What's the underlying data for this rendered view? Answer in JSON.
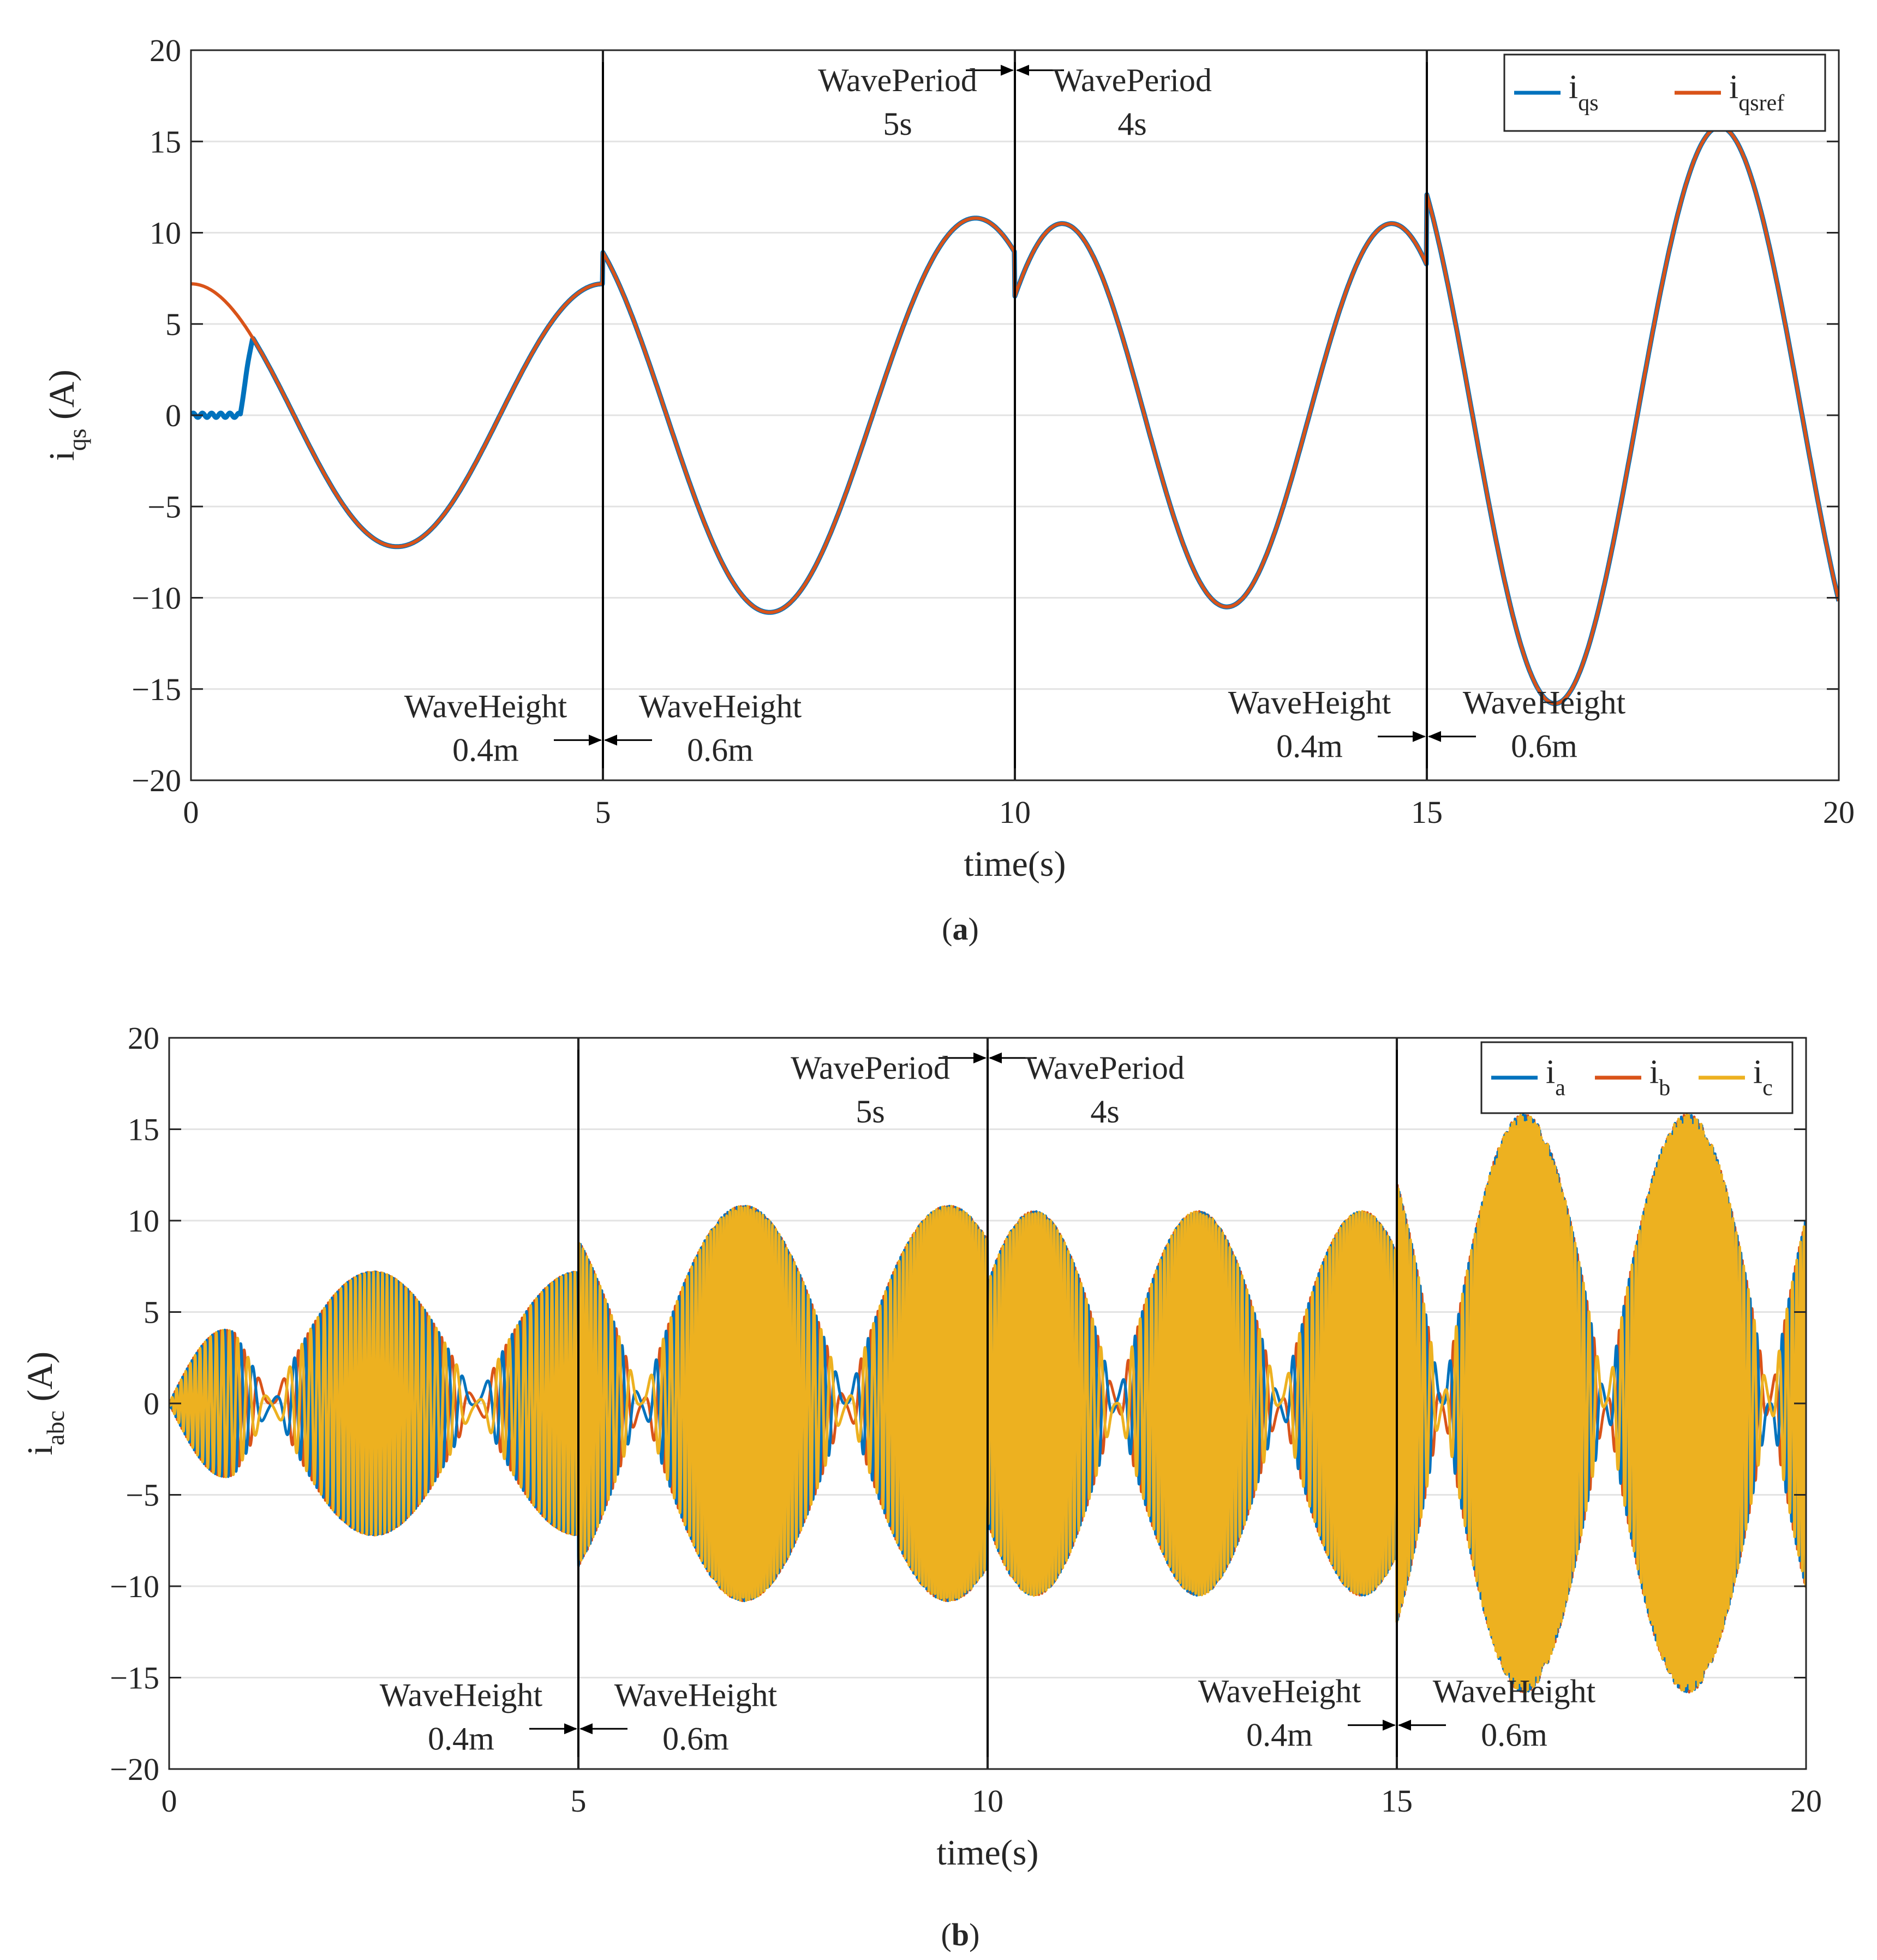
{
  "figure": {
    "captions": [
      "(a)",
      "(b)"
    ]
  },
  "chart_data": [
    {
      "type": "line",
      "panel": "a",
      "xlabel": "time(s)",
      "ylabel": "i",
      "ylabel_sub": "qs",
      "ylabel_unit": "(A)",
      "xlim": [
        0,
        20
      ],
      "ylim": [
        -20,
        20
      ],
      "xticks": [
        0,
        5,
        10,
        15,
        20
      ],
      "yticks": [
        -20,
        -15,
        -10,
        -5,
        0,
        5,
        10,
        15,
        20
      ],
      "ytick_labels": [
        "−20",
        "−15",
        "−10",
        "−5",
        "0",
        "5",
        "10",
        "15",
        "20"
      ],
      "grid": "horizontal",
      "legend_position": "top-right",
      "segments": [
        {
          "t0": 0,
          "t1": 5,
          "amplitude": 7.2,
          "period": 5,
          "phase": 0
        },
        {
          "t0": 5,
          "t1": 10,
          "amplitude": 10.8,
          "period": 5,
          "phase": 0.6
        },
        {
          "t0": 10,
          "t1": 15,
          "amplitude": 10.5,
          "period": 4,
          "phase": -0.9
        },
        {
          "t0": 15,
          "t1": 20,
          "amplitude": 15.8,
          "period": 4,
          "phase": 0.7
        }
      ],
      "series": [
        {
          "name": "i",
          "sub": "qs",
          "color": "#0072BD",
          "startup_flat_until": 0.75
        },
        {
          "name": "i",
          "sub": "qsref",
          "color": "#D95319"
        }
      ],
      "vlines": [
        5,
        10,
        15
      ],
      "annotations": [
        {
          "lines": [
            "WaveHeight",
            "0.4m"
          ],
          "side": "left",
          "x": 5,
          "y": -17.8
        },
        {
          "lines": [
            "WaveHeight",
            "0.6m"
          ],
          "side": "right",
          "x": 5,
          "y": -17.8
        },
        {
          "lines": [
            "WavePeriod",
            "5s"
          ],
          "side": "left",
          "x": 10,
          "y": 18.9
        },
        {
          "lines": [
            "WavePeriod",
            "4s"
          ],
          "side": "right",
          "x": 10,
          "y": 18.9
        },
        {
          "lines": [
            "WaveHeight",
            "0.4m"
          ],
          "side": "left",
          "x": 15,
          "y": -17.6
        },
        {
          "lines": [
            "WaveHeight",
            "0.6m"
          ],
          "side": "right",
          "x": 15,
          "y": -17.6
        }
      ]
    },
    {
      "type": "line",
      "panel": "b",
      "xlabel": "time(s)",
      "ylabel": "i",
      "ylabel_sub": "abc",
      "ylabel_unit": "(A)",
      "xlim": [
        0,
        20
      ],
      "ylim": [
        -20,
        20
      ],
      "xticks": [
        0,
        5,
        10,
        15,
        20
      ],
      "yticks": [
        -20,
        -15,
        -10,
        -5,
        0,
        5,
        10,
        15,
        20
      ],
      "ytick_labels": [
        "−20",
        "−15",
        "−10",
        "−5",
        "0",
        "5",
        "10",
        "15",
        "20"
      ],
      "grid": "horizontal",
      "legend_position": "top-right",
      "electrical": {
        "k": 16,
        "order": [
          1,
          0,
          2
        ]
      },
      "series": [
        {
          "name": "i",
          "sub": "a",
          "color": "#0072BD"
        },
        {
          "name": "i",
          "sub": "b",
          "color": "#D95319"
        },
        {
          "name": "i",
          "sub": "c",
          "color": "#EDB120"
        }
      ],
      "vlines": [
        5,
        10,
        15
      ],
      "annotations": [
        {
          "lines": [
            "WaveHeight",
            "0.4m"
          ],
          "side": "left",
          "x": 5,
          "y": -17.8
        },
        {
          "lines": [
            "WaveHeight",
            "0.6m"
          ],
          "side": "right",
          "x": 5,
          "y": -17.8
        },
        {
          "lines": [
            "WavePeriod",
            "5s"
          ],
          "side": "left",
          "x": 10,
          "y": 18.9
        },
        {
          "lines": [
            "WavePeriod",
            "4s"
          ],
          "side": "right",
          "x": 10,
          "y": 18.9
        },
        {
          "lines": [
            "WaveHeight",
            "0.4m"
          ],
          "side": "left",
          "x": 15,
          "y": -17.6
        },
        {
          "lines": [
            "WaveHeight",
            "0.6m"
          ],
          "side": "right",
          "x": 15,
          "y": -17.6
        }
      ]
    }
  ]
}
